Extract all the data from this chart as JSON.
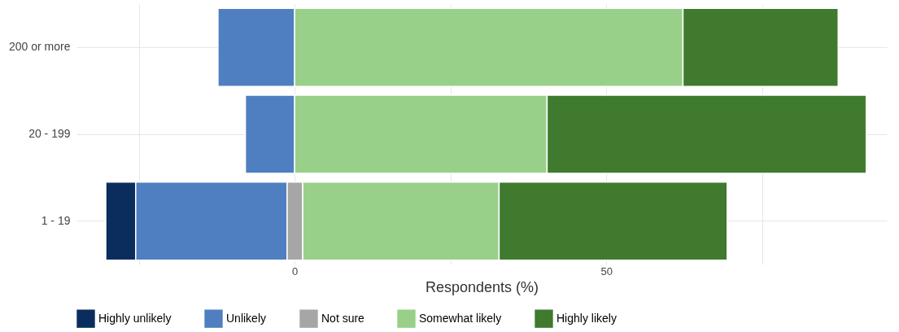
{
  "chart_data": {
    "type": "bar",
    "orientation": "horizontal",
    "xlabel": "Respondents (%)",
    "categories": [
      "200 or more",
      "20 - 199",
      "1 - 19"
    ],
    "series": [
      {
        "name": "Highly unlikely",
        "color": "#0b2d5e",
        "base": [
          null,
          null,
          -30.3
        ],
        "values": [
          null,
          null,
          4.8
        ]
      },
      {
        "name": "Unlikely",
        "color": "#4f7fc0",
        "base": [
          -12.3,
          -7.9,
          -25.5
        ],
        "values": [
          12.3,
          7.9,
          24.3
        ]
      },
      {
        "name": "Not sure",
        "color": "#a6a6a6",
        "base": [
          null,
          null,
          -1.2
        ],
        "values": [
          null,
          null,
          2.5
        ]
      },
      {
        "name": "Somewhat likely",
        "color": "#98d08a",
        "base": [
          0,
          0,
          1.3
        ],
        "values": [
          62.3,
          40.5,
          31.5
        ]
      },
      {
        "name": "Highly likely",
        "color": "#3f7a2f",
        "base": [
          62.3,
          40.5,
          32.8
        ],
        "values": [
          24.9,
          51.2,
          36.6
        ]
      }
    ],
    "xlim": [
      -35,
      95
    ],
    "xticks": [
      {
        "value": -25,
        "label": null
      },
      0,
      {
        "value": 25,
        "label": null
      },
      50,
      {
        "value": 75,
        "label": null
      }
    ],
    "grid": true,
    "legend": "bottom"
  }
}
